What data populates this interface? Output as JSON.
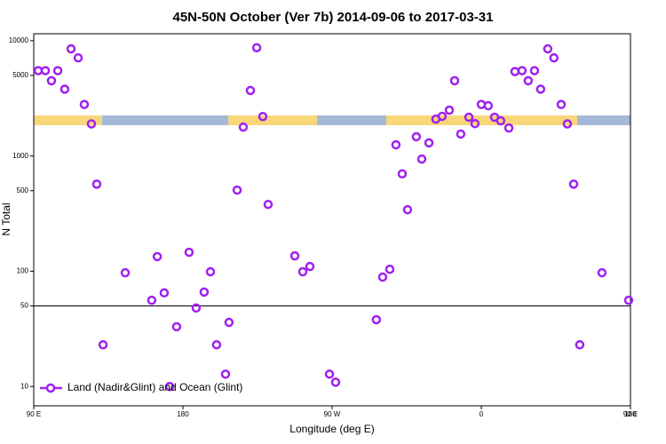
{
  "chart_data": {
    "type": "scatter",
    "title": "45N-50N October (Ver 7b)   2014-09-06 to 2017-03-31",
    "x_label": "Longitude (deg E)",
    "y_label": "N Total",
    "log_y": true,
    "xlim": [
      90,
      450
    ],
    "xticks": [
      {
        "value": 90,
        "label": "90 E"
      },
      {
        "value": 180,
        "label": "180"
      },
      {
        "value": 270,
        "label": "90 W"
      },
      {
        "value": 360,
        "label": "0"
      },
      {
        "value": 450,
        "label": "90 E"
      },
      {
        "value": 540,
        "label": "180"
      }
    ],
    "ylim": [
      6.8,
      11500
    ],
    "yticks": [
      10,
      50,
      100,
      500,
      1000,
      5000,
      10000
    ],
    "hline": 50,
    "legend": "bottom-left",
    "series": [
      {
        "name": "Land (Nadir&Glint) and Ocean (Glint)",
        "color": "#a020f0",
        "x": [
          92.7,
          97,
          100.7,
          104.5,
          108.7,
          112.5,
          116.8,
          120.5,
          124.8,
          128,
          131.8,
          145.2,
          161.2,
          164.5,
          168.7,
          172,
          176.2,
          183.7,
          188,
          192.8,
          196.6,
          200.3,
          205.7,
          207.8,
          212.7,
          216.4,
          220.7,
          224.5,
          228.2,
          231.4,
          247.5,
          252.3,
          256.6,
          268.4,
          272.1,
          296.7,
          300.5,
          304.8,
          308.5,
          312.3,
          315.5,
          320.8,
          324.1,
          328.4,
          332.6,
          336.4,
          340.7,
          343.9,
          347.6,
          352.5,
          356.2,
          360,
          364.2,
          368,
          371.7,
          376.6,
          380.3,
          384.6,
          388.3,
          392.1,
          395.8,
          400.1,
          403.8,
          408.2,
          411.9,
          415.7,
          419.4,
          432.8,
          448.9
        ],
        "values": [
          5500,
          5500,
          4500,
          5500,
          3800,
          8500,
          7100,
          2800,
          1900,
          570,
          23,
          97,
          56,
          134,
          65,
          10,
          33,
          146,
          48,
          66,
          99,
          23,
          12.8,
          36,
          506,
          1780,
          3700,
          8700,
          2200,
          380,
          136,
          99,
          110,
          12.8,
          10.9,
          38,
          89,
          104,
          1250,
          700,
          342,
          1470,
          940,
          1300,
          2090,
          2210,
          2500,
          4500,
          1550,
          2170,
          1910,
          2800,
          2730,
          2170,
          2020,
          1750,
          5400,
          5500,
          4500,
          5500,
          3800,
          8500,
          7100,
          2800,
          1900,
          570,
          23,
          97,
          56
        ]
      }
    ]
  }
}
